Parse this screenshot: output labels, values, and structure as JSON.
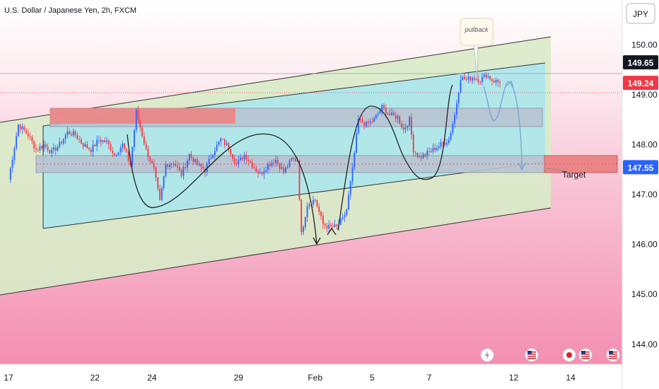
{
  "header": {
    "title": "U.S. Dollar / Japanese Yen, 2h, FXCM"
  },
  "currency_button": "JPY",
  "colors": {
    "up": "#2962ff",
    "down": "#f23645",
    "channel_fill": "#d8ebc8",
    "range_fill": "#a9e6ee",
    "zone_fill": "#f08080",
    "grey_zone": "#b9c3d2",
    "background_bottom": "#f48fb1"
  },
  "chart_data": {
    "type": "candlestick",
    "title": "U.S. Dollar / Japanese Yen, 2h, FXCM",
    "ylim": [
      143.6,
      150.9
    ],
    "y_ticks": [
      144.0,
      145.0,
      146.0,
      147.0,
      148.0,
      149.0,
      150.0
    ],
    "y_tick_labels": [
      "144.00",
      "145.00",
      "146.00",
      "147.00",
      "148.00",
      "149.00",
      "150.00"
    ],
    "x_ticks": [
      {
        "label": "17",
        "index": 0
      },
      {
        "label": "22",
        "index": 44
      },
      {
        "label": "24",
        "index": 73
      },
      {
        "label": "29",
        "index": 117
      },
      {
        "label": "Feb",
        "index": 156
      },
      {
        "label": "5",
        "index": 185
      },
      {
        "label": "7",
        "index": 214
      },
      {
        "label": "12",
        "index": 257
      },
      {
        "label": "14",
        "index": 286
      }
    ],
    "price_markers": [
      {
        "label": "149.65",
        "value": 149.65,
        "style": "dark"
      },
      {
        "label": "149.24",
        "value": 149.24,
        "style": "red"
      },
      {
        "label": "147.55",
        "value": 147.55,
        "style": "blue"
      }
    ],
    "anchors": [
      [
        0,
        147.3
      ],
      [
        5,
        148.4
      ],
      [
        10,
        148.2
      ],
      [
        14,
        147.9
      ],
      [
        18,
        148.0
      ],
      [
        22,
        147.85
      ],
      [
        26,
        148.0
      ],
      [
        30,
        148.25
      ],
      [
        34,
        148.2
      ],
      [
        38,
        148.0
      ],
      [
        42,
        147.9
      ],
      [
        46,
        148.1
      ],
      [
        50,
        148.05
      ],
      [
        54,
        147.8
      ],
      [
        58,
        148.0
      ],
      [
        62,
        147.6
      ],
      [
        65,
        148.65
      ],
      [
        70,
        147.9
      ],
      [
        74,
        147.5
      ],
      [
        77,
        146.85
      ],
      [
        80,
        147.6
      ],
      [
        84,
        147.65
      ],
      [
        88,
        147.4
      ],
      [
        92,
        147.8
      ],
      [
        96,
        147.6
      ],
      [
        100,
        147.5
      ],
      [
        104,
        147.85
      ],
      [
        108,
        148.1
      ],
      [
        112,
        147.95
      ],
      [
        116,
        147.6
      ],
      [
        120,
        147.8
      ],
      [
        124,
        147.6
      ],
      [
        128,
        147.4
      ],
      [
        132,
        147.6
      ],
      [
        136,
        147.7
      ],
      [
        140,
        147.45
      ],
      [
        144,
        147.7
      ],
      [
        147,
        147.7
      ],
      [
        149,
        146.2
      ],
      [
        152,
        146.8
      ],
      [
        156,
        146.9
      ],
      [
        160,
        146.4
      ],
      [
        163,
        146.35
      ],
      [
        167,
        146.35
      ],
      [
        170,
        146.5
      ],
      [
        172,
        146.7
      ],
      [
        175,
        147.5
      ],
      [
        178,
        148.5
      ],
      [
        182,
        148.4
      ],
      [
        186,
        148.5
      ],
      [
        190,
        148.75
      ],
      [
        194,
        148.6
      ],
      [
        198,
        148.55
      ],
      [
        201,
        148.3
      ],
      [
        204,
        148.5
      ],
      [
        206,
        147.9
      ],
      [
        209,
        147.75
      ],
      [
        212,
        147.8
      ],
      [
        216,
        147.9
      ],
      [
        220,
        148.0
      ],
      [
        224,
        148.1
      ],
      [
        227,
        148.6
      ],
      [
        230,
        149.35
      ],
      [
        233,
        149.3
      ],
      [
        236,
        149.35
      ],
      [
        240,
        149.3
      ],
      [
        243,
        149.4
      ],
      [
        246,
        149.3
      ],
      [
        250,
        149.24
      ]
    ],
    "annotations": [
      {
        "type": "callout",
        "text": "pullback"
      },
      {
        "type": "label",
        "text": "Target"
      }
    ]
  },
  "event_icons": [
    {
      "name": "flash-event-icon",
      "kind": "flash"
    },
    {
      "name": "us-flag-icon",
      "kind": "us"
    },
    {
      "name": "japan-flag-icon",
      "kind": "jp"
    },
    {
      "name": "us-flag-icon",
      "kind": "us"
    },
    {
      "name": "us-flag-icon",
      "kind": "us"
    }
  ]
}
